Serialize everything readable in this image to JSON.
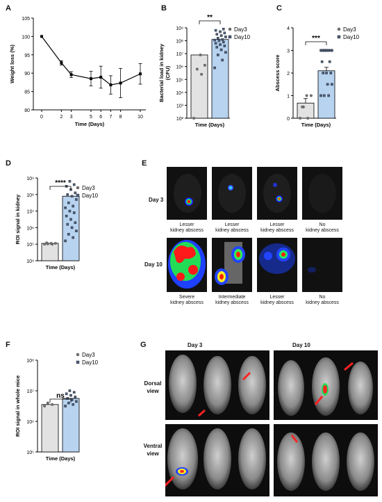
{
  "panel_labels": {
    "A": "A",
    "B": "B",
    "C": "C",
    "D": "D",
    "E": "E",
    "F": "F",
    "G": "G"
  },
  "chart_data": [
    {
      "id": "A",
      "type": "line",
      "xlabel": "Time (Days)",
      "ylabel": "Weight loss (%)",
      "x": [
        0,
        2,
        3,
        5,
        6,
        7,
        8,
        10
      ],
      "y": [
        100,
        92.8,
        89.6,
        88.5,
        88.9,
        86.8,
        87.3,
        89.8
      ],
      "err": [
        0,
        0.6,
        0.8,
        2,
        3,
        2.5,
        4,
        2.8
      ],
      "xticks": [
        "0",
        "2",
        "3",
        "5",
        "6",
        "7",
        "8",
        "10"
      ],
      "yticks": [
        "80",
        "85",
        "90",
        "95",
        "100",
        "105"
      ],
      "ylim": [
        80,
        105
      ]
    },
    {
      "id": "B",
      "type": "bar",
      "scale": "log",
      "xlabel": "Time (Days)",
      "ylabel": "Bacterial load in kidney",
      "ylabel2": "(CFU)",
      "yticks": [
        "10²",
        "10³",
        "10⁴",
        "10⁵",
        "10⁶",
        "10⁷",
        "10⁸",
        "10⁹"
      ],
      "ylim_log": [
        2,
        9
      ],
      "significance": "**",
      "series": [
        {
          "name": "Day3",
          "mean_log": 6.9,
          "points_log": [
            2.0,
            5.4,
            5.8,
            6.1,
            6.9
          ]
        },
        {
          "name": "Day10",
          "mean_log": 8.1,
          "points_log": [
            5.9,
            6.5,
            6.9,
            7.1,
            7.3,
            7.5,
            7.6,
            7.7,
            7.8,
            7.9,
            8.0,
            8.05,
            8.1,
            8.2,
            8.3,
            8.4,
            8.5,
            8.6,
            8.7,
            8.8,
            8.9
          ]
        }
      ],
      "colors": {
        "Day3": "#e2e2e2",
        "Day10": "#b8d3ef"
      }
    },
    {
      "id": "C",
      "type": "bar",
      "xlabel": "Time (Days)",
      "ylabel": "Abscess score",
      "yticks": [
        "0",
        "1",
        "2",
        "3",
        "4"
      ],
      "ylim": [
        0,
        4
      ],
      "significance": "***",
      "series": [
        {
          "name": "Day3",
          "mean": 0.67,
          "err": 0.2,
          "points": [
            0,
            0,
            0.5,
            1,
            1,
            0.5
          ]
        },
        {
          "name": "Day10",
          "mean": 2.1,
          "err": 0.15,
          "points": [
            1,
            1,
            1,
            1.5,
            1.5,
            2,
            2,
            2,
            2.5,
            2.5,
            3,
            3,
            3,
            3,
            3,
            3,
            3,
            3,
            3,
            3
          ]
        }
      ],
      "colors": {
        "Day3": "#e2e2e2",
        "Day10": "#b8d3ef"
      }
    },
    {
      "id": "D",
      "type": "bar",
      "scale": "log",
      "xlabel": "Time (Days)",
      "ylabel": "ROI signal in kidney",
      "yticks": [
        "10⁴",
        "10⁵",
        "10⁶",
        "10⁷",
        "10⁸",
        "10⁹"
      ],
      "ylim_log": [
        4,
        9
      ],
      "significance": "****",
      "series": [
        {
          "name": "Day3",
          "mean_log": 5.05,
          "points_log": [
            5.0,
            5.0,
            5.02,
            5.05,
            5.05,
            5.08
          ]
        },
        {
          "name": "Day10",
          "mean_log": 7.9,
          "points_log": [
            5.2,
            5.4,
            5.6,
            5.8,
            6.0,
            6.2,
            6.3,
            6.5,
            6.7,
            6.9,
            7.0,
            7.2,
            7.3,
            7.5,
            7.7,
            7.9,
            8.0,
            8.1,
            8.3,
            8.5,
            8.6,
            8.8
          ]
        }
      ],
      "colors": {
        "Day3": "#e2e2e2",
        "Day10": "#b8d3ef"
      }
    },
    {
      "id": "F",
      "type": "bar",
      "scale": "log",
      "xlabel": "Time (Days)",
      "ylabel": "ROI signal in whole mice",
      "yticks": [
        "10⁵",
        "10⁶",
        "10⁷",
        "10⁸"
      ],
      "ylim_log": [
        5,
        8
      ],
      "significance": "ns",
      "series": [
        {
          "name": "Day3",
          "mean_log": 6.55,
          "points_log": [
            6.5,
            6.55,
            6.6
          ]
        },
        {
          "name": "Day10",
          "mean_log": 6.75,
          "points_log": [
            6.5,
            6.55,
            6.6,
            6.65,
            6.7,
            6.75,
            6.8,
            6.85,
            6.9,
            6.95,
            7.0
          ]
        }
      ],
      "colors": {
        "Day3": "#e2e2e2",
        "Day10": "#b8d3ef"
      }
    }
  ],
  "panelE": {
    "rows": [
      "Day 3",
      "Day 10"
    ],
    "captions_day3": [
      [
        "Lesser",
        "kidney abscess"
      ],
      [
        "Lesser",
        "kidney abscess"
      ],
      [
        "Lesser",
        "kidney abscess"
      ],
      [
        "No",
        "kidney abscess"
      ]
    ],
    "captions_day10": [
      [
        "Severe",
        "kidney abscess"
      ],
      [
        "Intermediate",
        "kidney abscess"
      ],
      [
        "Lesser",
        "kidney abscess"
      ],
      [
        "No",
        "kidney abscess"
      ]
    ]
  },
  "panelG": {
    "cols": [
      "Day 3",
      "Day 10"
    ],
    "rows": [
      [
        "Dorsal",
        "view"
      ],
      [
        "Ventral",
        "view"
      ]
    ]
  }
}
